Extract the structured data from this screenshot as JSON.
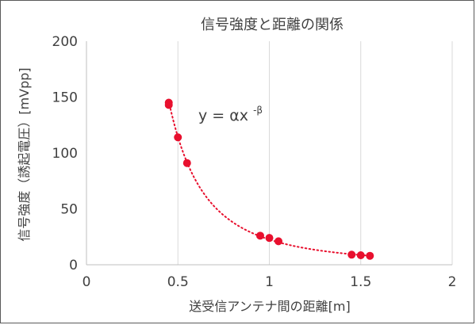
{
  "chart_data": {
    "type": "scatter",
    "title": "信号強度と距離の関係",
    "xlabel": "送受信アンテナ間の距離[m]",
    "ylabel": "信号強度（誘起電圧）[mVpp]",
    "xlim": [
      0,
      2
    ],
    "ylim": [
      0,
      200
    ],
    "x_ticks": [
      "0",
      "0.5",
      "1",
      "1.5",
      "2"
    ],
    "y_ticks": [
      "0",
      "50",
      "100",
      "150",
      "200"
    ],
    "grid": "vertical",
    "points": [
      {
        "x": 0.45,
        "y": 145
      },
      {
        "x": 0.45,
        "y": 143
      },
      {
        "x": 0.5,
        "y": 114
      },
      {
        "x": 0.55,
        "y": 91
      },
      {
        "x": 0.95,
        "y": 26
      },
      {
        "x": 1.0,
        "y": 24
      },
      {
        "x": 1.05,
        "y": 21
      },
      {
        "x": 1.45,
        "y": 9
      },
      {
        "x": 1.5,
        "y": 8.5
      },
      {
        "x": 1.55,
        "y": 8
      }
    ],
    "trendline": {
      "type": "power",
      "style": "dotted"
    },
    "annotation": {
      "text": "y = αx",
      "superscript": "-β"
    },
    "colors": {
      "marker": "#e8102e",
      "trendline": "#e8102e",
      "grid": "#d9d9d9",
      "axis": "#bfbfbf",
      "text": "#404040"
    }
  }
}
